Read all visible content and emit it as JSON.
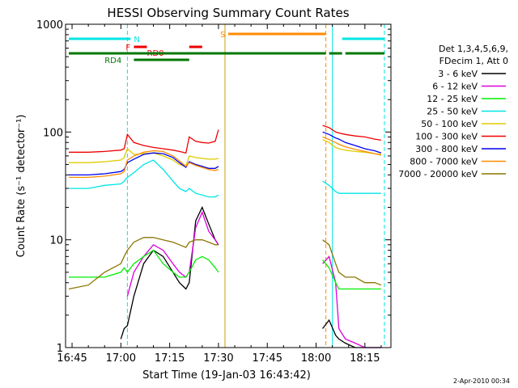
{
  "chart_data": {
    "type": "line",
    "title": "HESSI Observing Summary Count Rates",
    "xlabel": "Start Time (19-Jan-03 16:43:42)",
    "ylabel": "Count Rate (s⁻¹ detector⁻¹)",
    "yscale": "log",
    "ylim": [
      1,
      1000
    ],
    "xlim": [
      "16:43",
      "18:23"
    ],
    "x_ticks": [
      "16:45",
      "17:00",
      "17:15",
      "17:30",
      "17:45",
      "18:00",
      "18:15"
    ],
    "y_ticks": [
      "1",
      "10",
      "100",
      "1000"
    ],
    "legend": {
      "header": [
        "Det 1,3,4,5,6,9,",
        "FDecim 1, Att 0"
      ],
      "placement": "right"
    },
    "timestamp": "2-Apr-2010 00:34",
    "series": [
      {
        "name": "3 - 6 keV",
        "color": "#000000",
        "x": [
          "16:44",
          "16:55",
          "17:00",
          "17:01",
          "17:02",
          "17:04",
          "17:07",
          "17:10",
          "17:13",
          "17:16",
          "17:18",
          "17:20",
          "17:21",
          "17:23",
          "17:25",
          "17:27",
          "17:29",
          "17:30",
          "17:31",
          "18:01",
          "18:02",
          "18:04",
          "18:06",
          "18:07",
          "18:09",
          "18:12",
          "18:15",
          "18:18",
          "18:20"
        ],
        "y": [
          null,
          null,
          1.2,
          1.5,
          1.6,
          3,
          6,
          8,
          7,
          5,
          4,
          3.5,
          4,
          15,
          20,
          14,
          10,
          9,
          null,
          null,
          1.5,
          1.8,
          1.3,
          1.2,
          1.1,
          1.0,
          1.0,
          1.0,
          1.0
        ]
      },
      {
        "name": "6 - 12 keV",
        "color": "#dd00dd",
        "x": [
          "16:44",
          "16:55",
          "17:00",
          "17:01",
          "17:02",
          "17:04",
          "17:07",
          "17:10",
          "17:13",
          "17:16",
          "17:18",
          "17:20",
          "17:21",
          "17:23",
          "17:25",
          "17:27",
          "17:29",
          "17:30",
          "17:31",
          "18:01",
          "18:02",
          "18:04",
          "18:06",
          "18:07",
          "18:09",
          "18:12",
          "18:15",
          "18:18",
          "18:20"
        ],
        "y": [
          null,
          null,
          null,
          null,
          3,
          5,
          7,
          9,
          8,
          6,
          5,
          4.5,
          5,
          13,
          18,
          12,
          10,
          9,
          null,
          null,
          6,
          7,
          4,
          1.5,
          1.2,
          1.1,
          1.0,
          1.0,
          1.0
        ]
      },
      {
        "name": "12 - 25 keV",
        "color": "#00ee00",
        "x": [
          "16:44",
          "16:50",
          "16:55",
          "17:00",
          "17:01",
          "17:02",
          "17:04",
          "17:07",
          "17:10",
          "17:13",
          "17:16",
          "17:18",
          "17:20",
          "17:21",
          "17:23",
          "17:25",
          "17:27",
          "17:29",
          "17:30",
          "17:31",
          "18:01",
          "18:02",
          "18:04",
          "18:06",
          "18:07",
          "18:09",
          "18:12",
          "18:15",
          "18:18",
          "18:20"
        ],
        "y": [
          4.5,
          4.5,
          4.5,
          5,
          5.5,
          5,
          6,
          7,
          8,
          6,
          5,
          4.5,
          4.5,
          5,
          6.5,
          7,
          6.5,
          5.5,
          5,
          null,
          null,
          6.5,
          5.5,
          4,
          3.5,
          3.5,
          3.5,
          3.5,
          3.5,
          3.5
        ]
      },
      {
        "name": "25 - 50 keV",
        "color": "#00e5e5",
        "x": [
          "16:44",
          "16:50",
          "16:55",
          "17:00",
          "17:01",
          "17:02",
          "17:04",
          "17:07",
          "17:10",
          "17:13",
          "17:16",
          "17:18",
          "17:20",
          "17:21",
          "17:23",
          "17:25",
          "17:27",
          "17:29",
          "17:30",
          "17:31",
          "18:01",
          "18:02",
          "18:04",
          "18:06",
          "18:07",
          "18:09",
          "18:12",
          "18:15",
          "18:18",
          "18:20"
        ],
        "y": [
          30,
          30,
          32,
          33,
          35,
          38,
          42,
          50,
          55,
          45,
          35,
          30,
          28,
          30,
          27,
          26,
          25,
          25,
          26,
          null,
          null,
          35,
          32,
          28,
          27,
          27,
          27,
          27,
          27,
          27
        ]
      },
      {
        "name": "50 - 100 keV",
        "color": "#ddcc00",
        "x": [
          "16:44",
          "16:50",
          "16:55",
          "17:00",
          "17:01",
          "17:02",
          "17:04",
          "17:07",
          "17:10",
          "17:13",
          "17:16",
          "17:18",
          "17:20",
          "17:21",
          "17:23",
          "17:25",
          "17:27",
          "17:29",
          "17:30",
          "17:31",
          "18:01",
          "18:02",
          "18:04",
          "18:06",
          "18:07",
          "18:09",
          "18:12",
          "18:15",
          "18:18",
          "18:20"
        ],
        "y": [
          52,
          52,
          53,
          55,
          58,
          70,
          62,
          63,
          64,
          60,
          55,
          50,
          48,
          60,
          58,
          57,
          56,
          56,
          57,
          null,
          null,
          85,
          80,
          72,
          70,
          68,
          66,
          65,
          63,
          62
        ]
      },
      {
        "name": "100 - 300 keV",
        "color": "#ee0000",
        "x": [
          "16:44",
          "16:50",
          "16:55",
          "17:00",
          "17:01",
          "17:02",
          "17:04",
          "17:07",
          "17:10",
          "17:13",
          "17:16",
          "17:18",
          "17:20",
          "17:21",
          "17:23",
          "17:25",
          "17:27",
          "17:29",
          "17:30",
          "17:31",
          "18:01",
          "18:02",
          "18:04",
          "18:06",
          "18:07",
          "18:09",
          "18:12",
          "18:15",
          "18:18",
          "18:20"
        ],
        "y": [
          65,
          65,
          66,
          68,
          70,
          95,
          80,
          75,
          72,
          70,
          68,
          66,
          64,
          90,
          82,
          80,
          79,
          82,
          105,
          null,
          null,
          115,
          110,
          100,
          98,
          95,
          92,
          90,
          86,
          84
        ]
      },
      {
        "name": "300 - 800 keV",
        "color": "#0000ee",
        "x": [
          "16:44",
          "16:50",
          "16:55",
          "17:00",
          "17:01",
          "17:02",
          "17:04",
          "17:07",
          "17:10",
          "17:13",
          "17:16",
          "17:18",
          "17:20",
          "17:21",
          "17:23",
          "17:25",
          "17:27",
          "17:29",
          "17:30",
          "17:31",
          "18:01",
          "18:02",
          "18:04",
          "18:06",
          "18:07",
          "18:09",
          "18:12",
          "18:15",
          "18:18",
          "18:20"
        ],
        "y": [
          40,
          40,
          41,
          43,
          45,
          52,
          56,
          62,
          64,
          63,
          58,
          52,
          47,
          53,
          50,
          48,
          46,
          46,
          48,
          null,
          null,
          100,
          95,
          88,
          86,
          80,
          75,
          70,
          67,
          64
        ]
      },
      {
        "name": "800 - 7000 keV",
        "color": "#ff8a00",
        "x": [
          "16:44",
          "16:50",
          "16:55",
          "17:00",
          "17:01",
          "17:02",
          "17:04",
          "17:07",
          "17:10",
          "17:13",
          "17:16",
          "17:18",
          "17:20",
          "17:21",
          "17:23",
          "17:25",
          "17:27",
          "17:29",
          "17:30",
          "17:31",
          "18:01",
          "18:02",
          "18:04",
          "18:06",
          "18:07",
          "18:09",
          "18:12",
          "18:15",
          "18:18",
          "18:20"
        ],
        "y": [
          38,
          38,
          39,
          41,
          43,
          55,
          60,
          65,
          67,
          66,
          60,
          54,
          48,
          52,
          49,
          47,
          45,
          44,
          45,
          null,
          null,
          90,
          85,
          80,
          77,
          73,
          69,
          66,
          63,
          61
        ]
      },
      {
        "name": "7000 - 20000 keV",
        "color": "#8b7500",
        "x": [
          "16:44",
          "16:50",
          "16:55",
          "17:00",
          "17:01",
          "17:02",
          "17:04",
          "17:07",
          "17:10",
          "17:13",
          "17:16",
          "17:18",
          "17:20",
          "17:21",
          "17:23",
          "17:25",
          "17:27",
          "17:29",
          "17:30",
          "17:31",
          "18:01",
          "18:02",
          "18:04",
          "18:06",
          "18:07",
          "18:09",
          "18:12",
          "18:15",
          "18:18",
          "18:20"
        ],
        "y": [
          3.5,
          3.8,
          5,
          6,
          7,
          8,
          9.5,
          10.5,
          10.5,
          10,
          9.5,
          9,
          8.5,
          9.5,
          10,
          10,
          9.5,
          9,
          9,
          null,
          null,
          10,
          9,
          6,
          5,
          4.5,
          4.5,
          4,
          4,
          3.8
        ]
      }
    ],
    "flags": [
      {
        "label": "N",
        "color": "#00e5e5",
        "row": 0,
        "segments": [
          [
            "16:44",
            "17:03"
          ],
          [
            "18:08",
            "18:21"
          ]
        ]
      },
      {
        "label": "S",
        "color": "#ff8a00",
        "row": 1,
        "segments": [
          [
            "17:33",
            "18:03"
          ]
        ]
      },
      {
        "label": "F",
        "color": "#ee0000",
        "row": 2,
        "segments": [
          [
            "17:04",
            "17:08"
          ],
          [
            "17:21",
            "17:25"
          ]
        ]
      },
      {
        "label": "RD0",
        "color": "#ee0000",
        "row": 3,
        "segments": []
      },
      {
        "label": "",
        "color": "#007700",
        "row": 4,
        "segments": [
          [
            "16:44",
            "18:03"
          ],
          [
            "18:04",
            "18:08"
          ],
          [
            "18:09",
            "18:21"
          ]
        ]
      },
      {
        "label": "RD4",
        "color": "#007700",
        "row": 5,
        "segments": [
          [
            "17:04",
            "17:21"
          ]
        ]
      }
    ],
    "vlines": [
      {
        "time": "17:02",
        "color": "#00e5e5",
        "style": "dashed"
      },
      {
        "time": "17:32",
        "color": "#c9a000",
        "style": "solid"
      },
      {
        "time": "18:03",
        "color": "#ff8a00",
        "style": "dashed"
      },
      {
        "time": "18:05",
        "color": "#00e5e5",
        "style": "solid"
      },
      {
        "time": "18:21",
        "color": "#00e5e5",
        "style": "dashed"
      }
    ]
  }
}
